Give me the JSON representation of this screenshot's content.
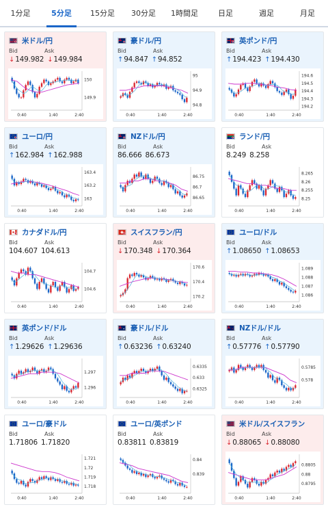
{
  "tabs": [
    {
      "label": "1分足",
      "active": false
    },
    {
      "label": "5分足",
      "active": true
    },
    {
      "label": "15分足",
      "active": false
    },
    {
      "label": "30分足",
      "active": false
    },
    {
      "label": "1時間足",
      "active": false
    },
    {
      "label": "日足",
      "active": false
    },
    {
      "label": "週足",
      "active": false
    },
    {
      "label": "月足",
      "active": false
    }
  ],
  "labels": {
    "bid": "Bid",
    "ask": "Ask"
  },
  "colors": {
    "up": "#1a66c8",
    "down": "#d9252e",
    "ma": "#cc33cc",
    "ma2": "#4fb0d8"
  },
  "pairs": [
    {
      "name": "米ドル/円",
      "flag": "us-jp",
      "dir": "down",
      "bid": "149.982",
      "ask": "149.984",
      "bid_dir": "down",
      "ask_dir": "down",
      "chart": {
        "x_ticks": [
          "0:40",
          "1:40",
          "2:40"
        ],
        "y_ticks": [
          "150",
          "149.9"
        ],
        "ymin": 149.84,
        "ymax": 150.04,
        "ma": [
          150.0,
          149.99,
          149.96,
          149.94,
          149.93,
          149.93,
          149.94,
          149.95,
          149.96,
          149.97,
          149.975,
          149.98
        ],
        "closes": [
          149.99,
          149.95,
          149.92,
          149.9,
          149.9,
          149.94,
          149.97,
          149.99,
          149.97,
          149.93,
          149.9,
          149.92,
          149.96,
          149.98,
          150.0,
          149.99,
          149.97,
          149.98,
          149.99,
          150.0,
          150.01,
          149.99,
          149.98,
          150.0,
          150.01,
          150.0,
          149.98,
          149.99,
          150.0,
          149.98
        ]
      }
    },
    {
      "name": "豪ドル/円",
      "flag": "au-jp",
      "dir": "up",
      "bid": "94.847",
      "ask": "94.852",
      "bid_dir": "up",
      "ask_dir": "up",
      "chart": {
        "x_ticks": [
          "0:40",
          "1:40",
          "2:40"
        ],
        "y_ticks": [
          "95",
          "94.9",
          "94.8"
        ],
        "ymin": 94.78,
        "ymax": 95.02,
        "ma": [
          94.9,
          94.9,
          94.91,
          94.92,
          94.93,
          94.93,
          94.93,
          94.93,
          94.92,
          94.91,
          94.9,
          94.88
        ],
        "closes": [
          94.86,
          94.88,
          94.87,
          94.85,
          94.89,
          94.92,
          94.95,
          94.96,
          94.95,
          94.94,
          94.96,
          94.95,
          94.93,
          94.94,
          94.92,
          94.93,
          94.95,
          94.94,
          94.93,
          94.94,
          94.91,
          94.92,
          94.93,
          94.9,
          94.89,
          94.88,
          94.87,
          94.84,
          94.82,
          94.85
        ]
      }
    },
    {
      "name": "英ポンド/円",
      "flag": "gb-jp",
      "dir": "up",
      "bid": "194.423",
      "ask": "194.430",
      "bid_dir": "up",
      "ask_dir": "up",
      "chart": {
        "x_ticks": [
          "0:40",
          "1:40",
          "2:40"
        ],
        "y_ticks": [
          "194.6",
          "194.5",
          "194.4",
          "194.3",
          "194.2"
        ],
        "ymin": 194.18,
        "ymax": 194.64,
        "ma": [
          194.5,
          194.49,
          194.49,
          194.5,
          194.5,
          194.49,
          194.48,
          194.47,
          194.45,
          194.44,
          194.42,
          194.41
        ],
        "closes": [
          194.42,
          194.38,
          194.33,
          194.36,
          194.42,
          194.48,
          194.5,
          194.44,
          194.4,
          194.46,
          194.52,
          194.55,
          194.5,
          194.46,
          194.5,
          194.47,
          194.44,
          194.49,
          194.53,
          194.5,
          194.45,
          194.4,
          194.38,
          194.35,
          194.39,
          194.42,
          194.36,
          194.3,
          194.34,
          194.42
        ]
      }
    },
    {
      "name": "ユーロ/円",
      "flag": "eu-jp",
      "dir": "up",
      "bid": "162.984",
      "ask": "162.988",
      "bid_dir": "up",
      "ask_dir": "up",
      "chart": {
        "x_ticks": [
          "0:40",
          "1:40",
          "2:40"
        ],
        "y_ticks": [
          "163.4",
          "163.2",
          "163"
        ],
        "ymin": 162.92,
        "ymax": 163.46,
        "ma": [
          163.22,
          163.24,
          163.26,
          163.26,
          163.25,
          163.23,
          163.21,
          163.18,
          163.15,
          163.12,
          163.08,
          163.05
        ],
        "closes": [
          163.3,
          163.2,
          163.25,
          163.22,
          163.26,
          163.3,
          163.28,
          163.24,
          163.27,
          163.23,
          163.2,
          163.24,
          163.22,
          163.18,
          163.2,
          163.16,
          163.13,
          163.15,
          163.18,
          163.12,
          163.08,
          163.1,
          163.05,
          163.02,
          163.06,
          163.03,
          162.98,
          162.96,
          162.99,
          162.98
        ]
      }
    },
    {
      "name": "NZドル/円",
      "flag": "nz-jp",
      "dir": "up",
      "bid": "86.666",
      "ask": "86.673",
      "bid_dir": "none",
      "ask_dir": "none",
      "chart": {
        "x_ticks": [
          "0:40",
          "1:40",
          "2:40"
        ],
        "y_ticks": [
          "86.75",
          "86.7",
          "86.65"
        ],
        "ymin": 86.62,
        "ymax": 86.79,
        "ma": [
          86.72,
          86.72,
          86.73,
          86.73,
          86.74,
          86.74,
          86.73,
          86.73,
          86.72,
          86.71,
          86.69,
          86.68
        ],
        "closes": [
          86.7,
          86.68,
          86.71,
          86.73,
          86.72,
          86.74,
          86.76,
          86.75,
          86.77,
          86.75,
          86.74,
          86.76,
          86.74,
          86.72,
          86.73,
          86.75,
          86.74,
          86.72,
          86.71,
          86.73,
          86.72,
          86.7,
          86.71,
          86.69,
          86.67,
          86.68,
          86.66,
          86.65,
          86.66,
          86.67
        ]
      }
    },
    {
      "name": "ランド/円",
      "flag": "za-jp",
      "dir": "none",
      "bid": "8.249",
      "ask": "8.258",
      "bid_dir": "none",
      "ask_dir": "none",
      "chart": {
        "x_ticks": [
          "0:40",
          "1:40",
          "2:40"
        ],
        "y_ticks": [
          "8.265",
          "8.26",
          "8.255",
          "8.25"
        ],
        "ymin": 8.247,
        "ymax": 8.268,
        "ma": [
          8.262,
          8.261,
          8.26,
          8.259,
          8.259,
          8.258,
          8.258,
          8.257,
          8.256,
          8.256,
          8.255,
          8.255
        ],
        "closes": [
          8.264,
          8.26,
          8.256,
          8.252,
          8.258,
          8.256,
          8.253,
          8.251,
          8.255,
          8.258,
          8.261,
          8.259,
          8.256,
          8.258,
          8.255,
          8.252,
          8.256,
          8.258,
          8.261,
          8.259,
          8.256,
          8.254,
          8.257,
          8.255,
          8.251,
          8.253,
          8.255,
          8.252,
          8.25,
          8.251
        ]
      }
    },
    {
      "name": "カナダドル/円",
      "flag": "ca-jp",
      "dir": "none",
      "bid": "104.607",
      "ask": "104.613",
      "bid_dir": "none",
      "ask_dir": "none",
      "chart": {
        "x_ticks": [
          "0:40",
          "1:40",
          "2:40"
        ],
        "y_ticks": [
          "104.7",
          "104.6"
        ],
        "ymin": 104.54,
        "ymax": 104.74,
        "ma": [
          104.7,
          104.69,
          104.69,
          104.68,
          104.68,
          104.67,
          104.66,
          104.65,
          104.64,
          104.63,
          104.62,
          104.61
        ],
        "closes": [
          104.65,
          104.62,
          104.66,
          104.69,
          104.71,
          104.7,
          104.68,
          104.72,
          104.7,
          104.66,
          104.63,
          104.6,
          104.64,
          104.66,
          104.63,
          104.6,
          104.58,
          104.62,
          104.64,
          104.61,
          104.59,
          104.62,
          104.64,
          104.61,
          104.58,
          104.6,
          104.62,
          104.59,
          104.6,
          104.61
        ]
      }
    },
    {
      "name": "スイスフラン/円",
      "flag": "ch-jp",
      "dir": "down",
      "bid": "170.348",
      "ask": "170.364",
      "bid_dir": "down",
      "ask_dir": "down",
      "chart": {
        "x_ticks": [
          "0:40",
          "1:40",
          "2:40"
        ],
        "y_ticks": [
          "170.6",
          "170.4",
          "170.2"
        ],
        "ymin": 170.16,
        "ymax": 170.64,
        "ma": [
          170.34,
          170.37,
          170.4,
          170.42,
          170.44,
          170.45,
          170.45,
          170.44,
          170.43,
          170.41,
          170.4,
          170.39
        ],
        "closes": [
          170.22,
          170.25,
          170.3,
          170.45,
          170.5,
          170.48,
          170.52,
          170.5,
          170.47,
          170.49,
          170.46,
          170.43,
          170.45,
          170.48,
          170.46,
          170.43,
          170.44,
          170.42,
          170.45,
          170.43,
          170.4,
          170.42,
          170.44,
          170.41,
          170.39,
          170.37,
          170.4,
          170.38,
          170.35,
          170.36
        ]
      }
    },
    {
      "name": "ユーロ/ドル",
      "flag": "eu-us",
      "dir": "up",
      "bid": "1.08650",
      "ask": "1.08653",
      "bid_dir": "up",
      "ask_dir": "up",
      "chart": {
        "x_ticks": [
          "0:40",
          "1:40",
          "2:40"
        ],
        "y_ticks": [
          "1.089",
          "1.088",
          "1.087",
          "1.086"
        ],
        "ymin": 1.0855,
        "ymax": 1.0895,
        "ma": [
          1.0887,
          1.0887,
          1.0886,
          1.0886,
          1.0885,
          1.0885,
          1.0884,
          1.0883,
          1.0881,
          1.0878,
          1.0874,
          1.087
        ],
        "closes": [
          1.0884,
          1.0882,
          1.0883,
          1.0881,
          1.0883,
          1.0884,
          1.0882,
          1.0884,
          1.0883,
          1.0881,
          1.0882,
          1.0884,
          1.0883,
          1.0885,
          1.0884,
          1.0882,
          1.0883,
          1.0881,
          1.0878,
          1.0876,
          1.0878,
          1.0875,
          1.0872,
          1.0874,
          1.087,
          1.0868,
          1.0866,
          1.0864,
          1.0863,
          1.0865
        ]
      }
    },
    {
      "name": "英ポンド/ドル",
      "flag": "gb-us",
      "dir": "up",
      "bid": "1.29626",
      "ask": "1.29636",
      "bid_dir": "up",
      "ask_dir": "up",
      "chart": {
        "x_ticks": [
          "0:40",
          "1:40",
          "2:40"
        ],
        "y_ticks": [
          "1.297",
          "1.296"
        ],
        "ymin": 1.2955,
        "ymax": 1.2978,
        "ma": [
          1.2966,
          1.2967,
          1.2968,
          1.2969,
          1.2969,
          1.297,
          1.297,
          1.297,
          1.2969,
          1.2967,
          1.2965,
          1.2963
        ],
        "closes": [
          1.2968,
          1.2966,
          1.2969,
          1.2971,
          1.2969,
          1.297,
          1.2972,
          1.297,
          1.2971,
          1.2973,
          1.2971,
          1.2969,
          1.2971,
          1.2972,
          1.297,
          1.2971,
          1.2973,
          1.2972,
          1.2969,
          1.2966,
          1.2964,
          1.2962,
          1.2959,
          1.2961,
          1.2958,
          1.2957,
          1.2959,
          1.2961,
          1.296,
          1.2963
        ]
      }
    },
    {
      "name": "豪ドル/ドル",
      "flag": "au-us",
      "dir": "up",
      "bid": "0.63236",
      "ask": "0.63240",
      "bid_dir": "up",
      "ask_dir": "up",
      "chart": {
        "x_ticks": [
          "0:40",
          "1:40",
          "2:40"
        ],
        "y_ticks": [
          "0.6335",
          "0.633",
          "0.6325"
        ],
        "ymin": 0.6322,
        "ymax": 0.6338,
        "ma": [
          0.6331,
          0.6331,
          0.6332,
          0.6332,
          0.6332,
          0.6333,
          0.6333,
          0.6333,
          0.6332,
          0.6331,
          0.633,
          0.6329
        ],
        "closes": [
          0.6328,
          0.633,
          0.6329,
          0.6331,
          0.633,
          0.6332,
          0.6333,
          0.6332,
          0.6333,
          0.6334,
          0.6333,
          0.6332,
          0.6333,
          0.6334,
          0.6333,
          0.6334,
          0.6335,
          0.6333,
          0.6331,
          0.6329,
          0.633,
          0.6328,
          0.6327,
          0.6326,
          0.6325,
          0.6324,
          0.6325,
          0.6323,
          0.6324,
          0.6324
        ]
      }
    },
    {
      "name": "NZドル/ドル",
      "flag": "nz-us",
      "dir": "up",
      "bid": "0.57776",
      "ask": "0.57790",
      "bid_dir": "up",
      "ask_dir": "up",
      "chart": {
        "x_ticks": [
          "0:40",
          "1:40",
          "2:40"
        ],
        "y_ticks": [
          "0.5785",
          "0.578"
        ],
        "ymin": 0.5774,
        "ymax": 0.5788,
        "ma": [
          0.5784,
          0.5784,
          0.5785,
          0.5785,
          0.5785,
          0.5785,
          0.5785,
          0.5784,
          0.5783,
          0.5782,
          0.578,
          0.5779
        ],
        "closes": [
          0.5784,
          0.5785,
          0.5783,
          0.5784,
          0.5786,
          0.5785,
          0.5784,
          0.5785,
          0.5786,
          0.5785,
          0.5784,
          0.5785,
          0.5786,
          0.5785,
          0.5786,
          0.5784,
          0.5783,
          0.5781,
          0.5782,
          0.578,
          0.5779,
          0.5781,
          0.578,
          0.5778,
          0.5777,
          0.5776,
          0.5777,
          0.5776,
          0.5777,
          0.5778
        ]
      }
    },
    {
      "name": "ユーロ/豪ドル",
      "flag": "eu-au",
      "dir": "none",
      "bid": "1.71806",
      "ask": "1.71820",
      "bid_dir": "none",
      "ask_dir": "none",
      "chart": {
        "x_ticks": [
          "0:40",
          "1:40",
          "2:40"
        ],
        "y_ticks": [
          "1.721",
          "1.72",
          "1.719",
          "1.718"
        ],
        "ymin": 1.7175,
        "ymax": 1.7213,
        "ma": [
          1.7205,
          1.7203,
          1.7201,
          1.7199,
          1.7197,
          1.7196,
          1.7196,
          1.7195,
          1.7193,
          1.719,
          1.7188,
          1.7186
        ],
        "closes": [
          1.7194,
          1.7188,
          1.7184,
          1.7183,
          1.7186,
          1.7182,
          1.718,
          1.7185,
          1.7188,
          1.7186,
          1.7184,
          1.7187,
          1.719,
          1.7188,
          1.7191,
          1.7189,
          1.7187,
          1.719,
          1.7188,
          1.7186,
          1.7188,
          1.7185,
          1.7184,
          1.7186,
          1.7183,
          1.7182,
          1.7184,
          1.7181,
          1.7182,
          1.7181
        ]
      }
    },
    {
      "name": "ユーロ/英ポンド",
      "flag": "eu-gb",
      "dir": "none",
      "bid": "0.83811",
      "ask": "0.83819",
      "bid_dir": "none",
      "ask_dir": "none",
      "chart": {
        "x_ticks": [
          "0:40",
          "1:40",
          "2:40"
        ],
        "y_ticks": [
          "0.84",
          "0.839"
        ],
        "ymin": 0.8378,
        "ymax": 0.8403,
        "ma": [
          0.8398,
          0.8397,
          0.8396,
          0.8394,
          0.8393,
          0.8392,
          0.8391,
          0.839,
          0.8389,
          0.8387,
          0.8385,
          0.8384
        ],
        "closes": [
          0.84,
          0.8398,
          0.8396,
          0.8394,
          0.8393,
          0.8391,
          0.8392,
          0.839,
          0.8391,
          0.8389,
          0.839,
          0.8388,
          0.8389,
          0.839,
          0.8388,
          0.8387,
          0.8388,
          0.8389,
          0.8387,
          0.8386,
          0.8385,
          0.8384,
          0.8386,
          0.8385,
          0.8383,
          0.8382,
          0.8384,
          0.8382,
          0.8381,
          0.8381
        ]
      }
    },
    {
      "name": "米ドル/スイスフラン",
      "flag": "us-ch",
      "dir": "down",
      "bid": "0.88065",
      "ask": "0.88080",
      "bid_dir": "down",
      "ask_dir": "down",
      "chart": {
        "x_ticks": [
          "0:40",
          "1:40",
          "2:40"
        ],
        "y_ticks": [
          "0.8805",
          "0.88",
          "0.8795"
        ],
        "ymin": 0.8791,
        "ymax": 0.881,
        "ma": [
          0.8801,
          0.88,
          0.8799,
          0.8798,
          0.8797,
          0.8797,
          0.8797,
          0.8798,
          0.8799,
          0.88,
          0.8802,
          0.8804
        ],
        "closes": [
          0.8806,
          0.8802,
          0.8798,
          0.8794,
          0.8796,
          0.8799,
          0.8797,
          0.8795,
          0.8793,
          0.8796,
          0.8798,
          0.8797,
          0.8795,
          0.8794,
          0.8796,
          0.8795,
          0.8797,
          0.8798,
          0.88,
          0.8799,
          0.8801,
          0.8802,
          0.8801,
          0.8803,
          0.8802,
          0.8804,
          0.8805,
          0.8804,
          0.8806,
          0.8807
        ]
      }
    }
  ]
}
